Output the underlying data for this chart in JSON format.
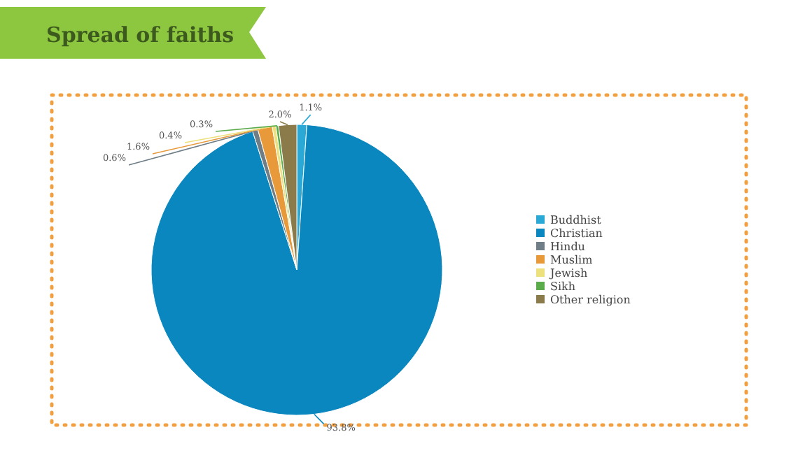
{
  "chart_data": {
    "type": "pie",
    "title": "Spread of faiths",
    "categories": [
      "Buddhist",
      "Christian",
      "Hindu",
      "Muslim",
      "Jewish",
      "Sikh",
      "Other religion"
    ],
    "values": [
      1.1,
      93.8,
      0.6,
      1.6,
      0.4,
      0.3,
      2.0
    ],
    "value_labels": [
      "1.1%",
      "93.8%",
      "0.6%",
      "1.6%",
      "0.4%",
      "0.3%",
      "2.0%"
    ],
    "colors": [
      "#2aa8d6",
      "#0b87bf",
      "#6e7d86",
      "#e8993a",
      "#ece17c",
      "#5aab4a",
      "#8b7b4a"
    ],
    "legend": "right"
  }
}
